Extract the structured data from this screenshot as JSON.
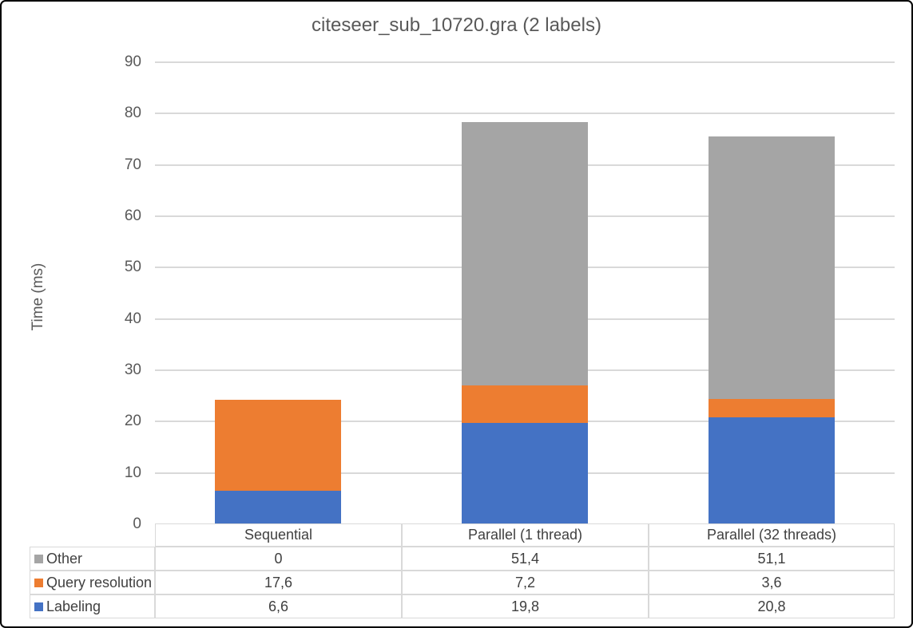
{
  "chart_data": {
    "type": "bar",
    "stacked": true,
    "title": "citeseer_sub_10720.gra  (2 labels)",
    "ylabel": "Time (ms)",
    "ylim": [
      0,
      90
    ],
    "ytick_step": 10,
    "grid": true,
    "legend_position": "table-left",
    "categories": [
      "Sequential",
      "Parallel (1 thread)",
      "Parallel (32 threads)"
    ],
    "series": [
      {
        "name": "Labeling",
        "color": "#4472C4",
        "values": [
          6.6,
          19.8,
          20.8
        ],
        "values_display": [
          "6,6",
          "19,8",
          "20,8"
        ]
      },
      {
        "name": "Query resolution",
        "color": "#ED7D31",
        "values": [
          17.6,
          7.2,
          3.6
        ],
        "values_display": [
          "17,6",
          "7,2",
          "3,6"
        ]
      },
      {
        "name": "Other",
        "color": "#A5A5A5",
        "values": [
          0,
          51.4,
          51.1
        ],
        "values_display": [
          "0",
          "51,4",
          "51,1"
        ]
      }
    ],
    "table_row_order": [
      "Other",
      "Query resolution",
      "Labeling"
    ],
    "colors": {
      "grid": "#D9D9D9",
      "axis_text": "#595959",
      "title_text": "#595959",
      "table_text": "#404040",
      "table_border": "#D9D9D9",
      "window_border": "#000000",
      "background": "#FFFFFF"
    }
  }
}
